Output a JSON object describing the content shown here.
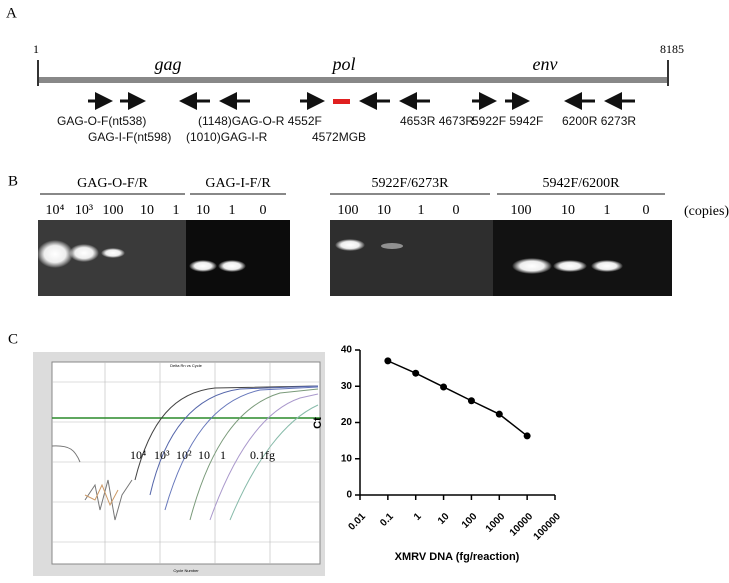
{
  "panels": [
    "A",
    "B",
    "C"
  ],
  "genome": {
    "start": "1",
    "end": "8185",
    "genes": [
      "gag",
      "pol",
      "env"
    ],
    "primer_labels": [
      "GAG-O-F(nt538)",
      "GAG-I-F(nt598)",
      "(1148)GAG-O-R 4552F",
      "(1010)GAG-I-R",
      "4572MGB",
      "4653R 4673R",
      "5922F 5942F",
      "6200R 6273R"
    ]
  },
  "gels": [
    {
      "title": "GAG-O-F/R",
      "lanes": [
        "10⁴",
        "10³",
        "100",
        "10",
        "1"
      ]
    },
    {
      "title": "GAG-I-F/R",
      "lanes": [
        "10",
        "1",
        "0"
      ]
    },
    {
      "title": "5922F/6273R",
      "lanes": [
        "100",
        "10",
        "1",
        "0"
      ]
    },
    {
      "title": "5942F/6200R",
      "lanes": [
        "100",
        "10",
        "1",
        "0"
      ]
    }
  ],
  "gel_unit": "(copies)",
  "amplification": {
    "title": "Delta Rn vs Cycle",
    "xlabel": "Cycle Number",
    "curve_labels": [
      "10⁴",
      "10³",
      "10²",
      "10",
      "1",
      "0.1fg"
    ]
  },
  "chart_data": {
    "type": "line",
    "x": [
      0.1,
      1,
      10,
      100,
      1000,
      10000
    ],
    "values": [
      37,
      33.6,
      29.8,
      26,
      22.3,
      16.3
    ],
    "color": "#000000",
    "xlog": true,
    "xlim": [
      0.01,
      100000
    ],
    "xticks": [
      0.01,
      0.1,
      1,
      10,
      100,
      1000,
      10000,
      100000
    ],
    "ylim": [
      0,
      40
    ],
    "yticks": [
      0,
      10,
      20,
      30,
      40
    ],
    "xlabel": "XMRV DNA (fg/reaction)",
    "ylabel": "Ct"
  }
}
